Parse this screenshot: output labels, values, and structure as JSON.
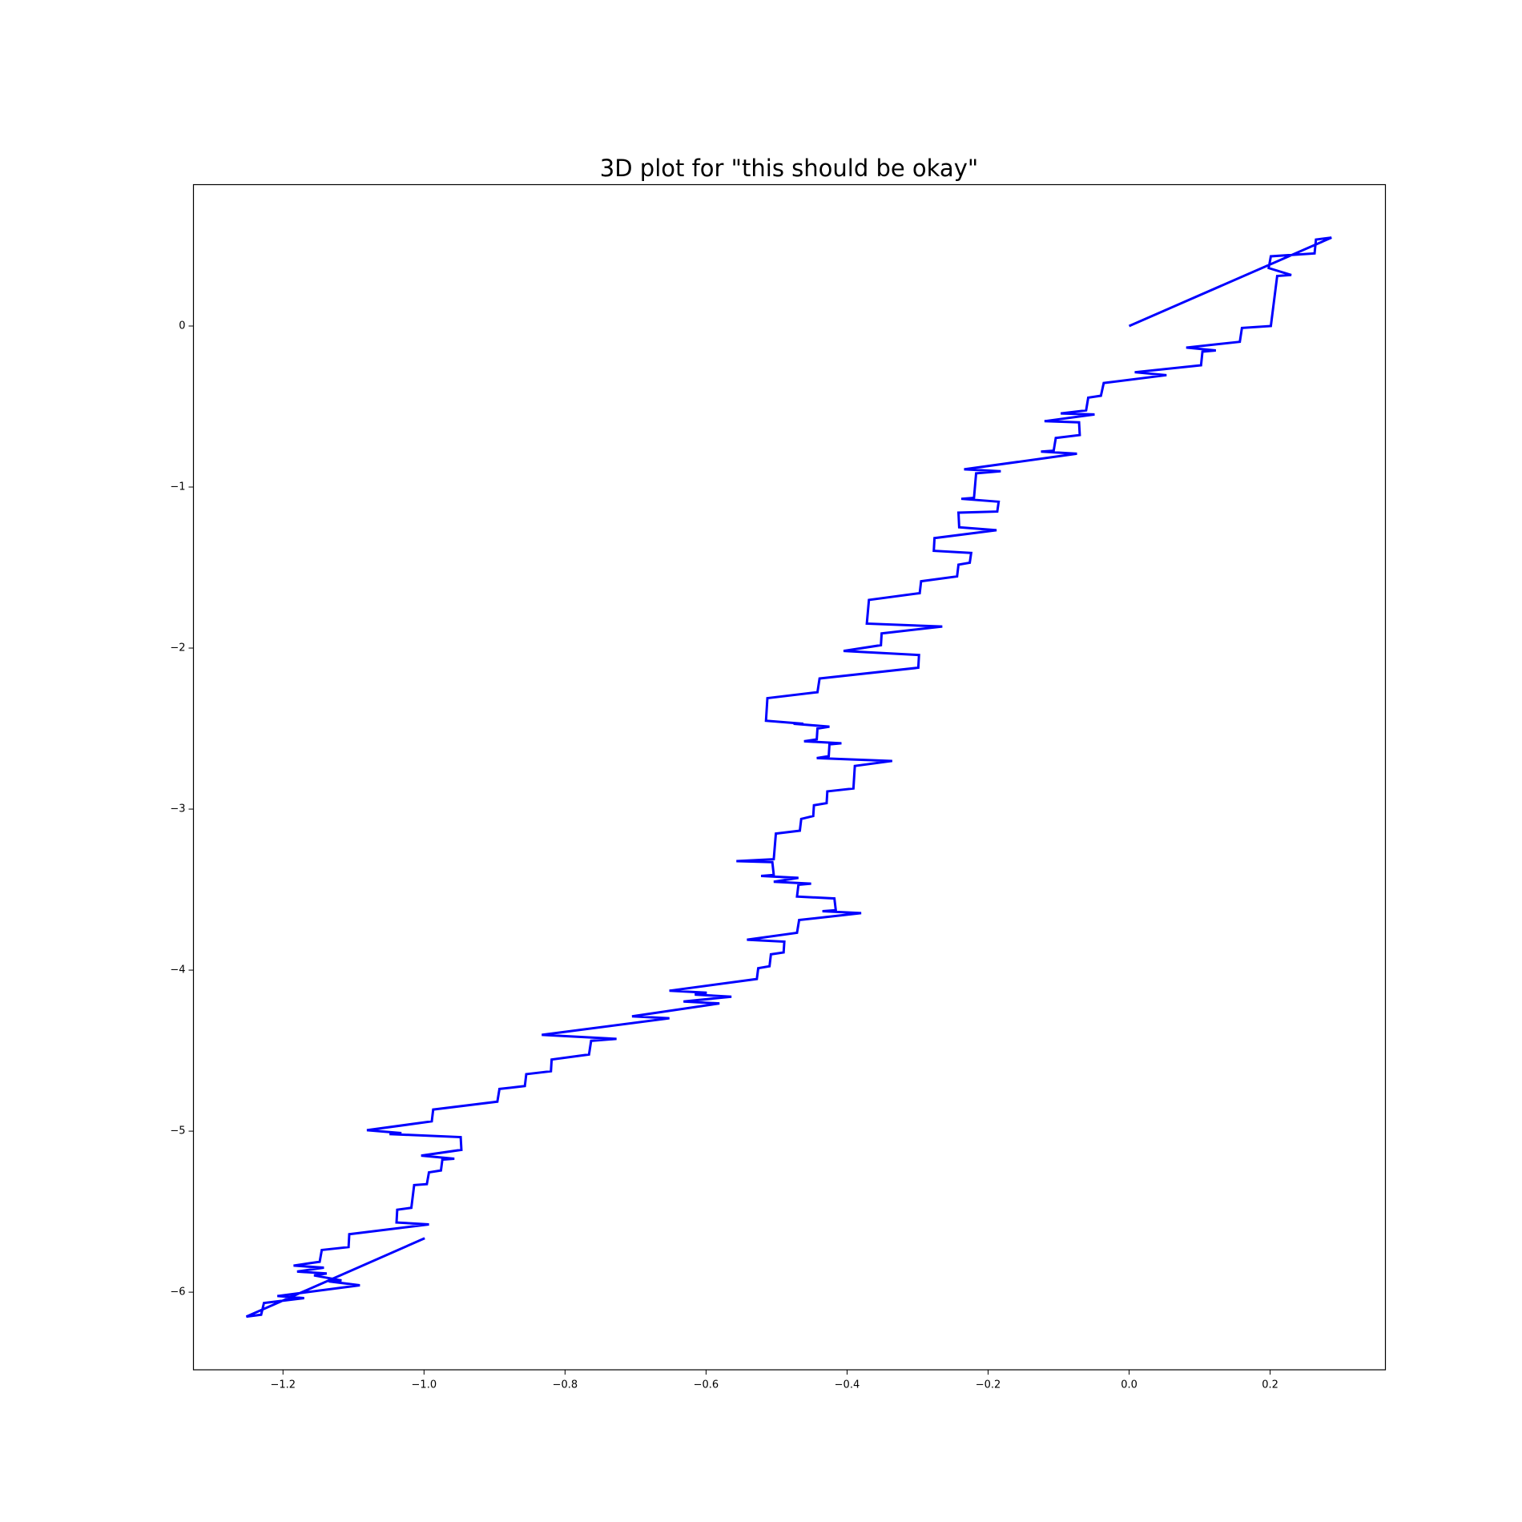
{
  "chart_data": {
    "type": "line",
    "title": "3D plot for \"this should be okay\"",
    "color": "#0000ff",
    "xlim": [
      -1.327,
      0.3635
    ],
    "ylim": [
      -6.482,
      0.878
    ],
    "xticks": [
      {
        "value": -1.2,
        "label": "−1.2"
      },
      {
        "value": -1.0,
        "label": "−1.0"
      },
      {
        "value": -0.8,
        "label": "−0.8"
      },
      {
        "value": -0.6,
        "label": "−0.6"
      },
      {
        "value": -0.4,
        "label": "−0.4"
      },
      {
        "value": -0.2,
        "label": "−0.2"
      },
      {
        "value": 0,
        "label": "0.0"
      },
      0.2
    ],
    "yticks": [
      0,
      {
        "value": -1,
        "label": "−1"
      },
      {
        "value": -2,
        "label": "−2"
      },
      {
        "value": -3,
        "label": "−3"
      },
      {
        "value": -4,
        "label": "−4"
      },
      {
        "value": -5,
        "label": "−5"
      },
      {
        "value": -6,
        "label": "−6"
      }
    ],
    "x": [
      0,
      0.287,
      0.265,
      0.263,
      0.201,
      0.198,
      0.23,
      0.21,
      0.201,
      0.16,
      0.157,
      0.081,
      0.123,
      0.104,
      0.102,
      0.008,
      0.053,
      -0.036,
      -0.04,
      -0.058,
      -0.061,
      -0.097,
      -0.049,
      -0.12,
      -0.071,
      -0.07,
      -0.104,
      -0.107,
      -0.125,
      -0.074,
      -0.234,
      -0.182,
      -0.217,
      -0.22,
      -0.238,
      -0.185,
      -0.187,
      -0.242,
      -0.241,
      -0.188,
      -0.276,
      -0.277,
      -0.224,
      -0.226,
      -0.242,
      -0.244,
      -0.295,
      -0.297,
      -0.369,
      -0.372,
      -0.265,
      -0.351,
      -0.352,
      -0.405,
      -0.298,
      -0.299,
      -0.439,
      -0.442,
      -0.513,
      -0.515,
      -0.462,
      -0.476,
      -0.425,
      -0.442,
      -0.443,
      -0.461,
      -0.408,
      -0.425,
      -0.426,
      -0.443,
      -0.336,
      -0.389,
      -0.391,
      -0.428,
      -0.429,
      -0.447,
      -0.448,
      -0.465,
      -0.467,
      -0.501,
      -0.504,
      -0.557,
      -0.506,
      -0.504,
      -0.522,
      -0.469,
      -0.504,
      -0.451,
      -0.469,
      -0.471,
      -0.418,
      -0.416,
      -0.435,
      -0.38,
      -0.468,
      -0.471,
      -0.542,
      -0.489,
      -0.49,
      -0.508,
      -0.51,
      -0.526,
      -0.528,
      -0.652,
      -0.599,
      -0.616,
      -0.564,
      -0.632,
      -0.581,
      -0.705,
      -0.652,
      -0.833,
      -0.727,
      -0.763,
      -0.766,
      -0.819,
      -0.82,
      -0.855,
      -0.857,
      -0.893,
      -0.896,
      -0.987,
      -0.989,
      -1.081,
      -1.032,
      -1.049,
      -0.948,
      -0.947,
      -1.004,
      -0.957,
      -0.974,
      -0.976,
      -0.993,
      -0.996,
      -1.014,
      -1.018,
      -1.038,
      -1.039,
      -0.993,
      -1.106,
      -1.107,
      -1.145,
      -1.148,
      -1.185,
      -1.142,
      -1.18,
      -1.138,
      -1.156,
      -1.117,
      -1.135,
      -1.091,
      -1.208,
      -1.17,
      -1.227,
      -1.231,
      -1.252,
      -0.999
    ],
    "values": [
      0,
      0.549,
      0.537,
      0.451,
      0.433,
      0.36,
      0.317,
      0.311,
      0,
      -0.012,
      -0.098,
      -0.134,
      -0.152,
      -0.159,
      -0.244,
      -0.287,
      -0.305,
      -0.354,
      -0.433,
      -0.445,
      -0.524,
      -0.543,
      -0.549,
      -0.591,
      -0.598,
      -0.677,
      -0.695,
      -0.774,
      -0.78,
      -0.793,
      -0.89,
      -0.902,
      -0.915,
      -1.067,
      -1.073,
      -1.091,
      -1.152,
      -1.159,
      -1.25,
      -1.268,
      -1.317,
      -1.396,
      -1.409,
      -1.47,
      -1.482,
      -1.555,
      -1.585,
      -1.659,
      -1.701,
      -1.848,
      -1.866,
      -1.909,
      -1.982,
      -2.018,
      -2.043,
      -2.122,
      -2.189,
      -2.274,
      -2.311,
      -2.451,
      -2.47,
      -2.47,
      -2.488,
      -2.5,
      -2.567,
      -2.579,
      -2.591,
      -2.598,
      -2.671,
      -2.683,
      -2.701,
      -2.732,
      -2.872,
      -2.89,
      -2.963,
      -2.976,
      -3.043,
      -3.061,
      -3.134,
      -3.152,
      -3.311,
      -3.323,
      -3.329,
      -3.409,
      -3.415,
      -3.427,
      -3.451,
      -3.463,
      -3.47,
      -3.543,
      -3.555,
      -3.628,
      -3.634,
      -3.646,
      -3.689,
      -3.768,
      -3.811,
      -3.823,
      -3.89,
      -3.902,
      -3.976,
      -3.988,
      -4.055,
      -4.128,
      -4.14,
      -4.152,
      -4.165,
      -4.195,
      -4.207,
      -4.287,
      -4.299,
      -4.402,
      -4.427,
      -4.439,
      -4.524,
      -4.555,
      -4.628,
      -4.646,
      -4.72,
      -4.738,
      -4.817,
      -4.866,
      -4.939,
      -4.994,
      -5.012,
      -5.018,
      -5.037,
      -5.116,
      -5.152,
      -5.171,
      -5.177,
      -5.244,
      -5.256,
      -5.329,
      -5.335,
      -5.476,
      -5.488,
      -5.567,
      -5.579,
      -5.64,
      -5.72,
      -5.738,
      -5.811,
      -5.835,
      -5.848,
      -5.872,
      -5.884,
      -5.896,
      -5.927,
      -5.933,
      -5.957,
      -6.024,
      -6.037,
      -6.067,
      -6.14,
      -6.152,
      -5.665
    ]
  }
}
